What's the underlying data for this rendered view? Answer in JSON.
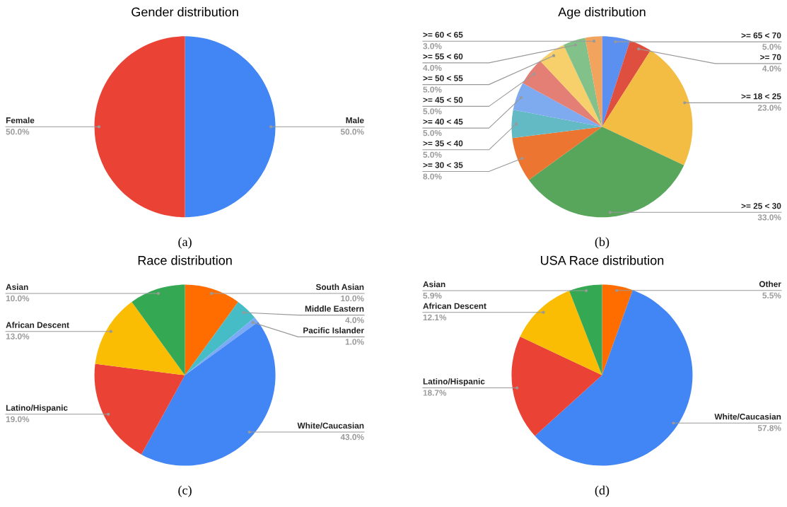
{
  "chart_data": [
    {
      "type": "pie",
      "title": "Gender distribution",
      "categories": [
        "Male",
        "Female"
      ],
      "values": [
        50.0,
        50.0
      ],
      "value_labels": [
        "50.0%",
        "50.0%"
      ],
      "colors": [
        "#4285f4",
        "#ea4335"
      ],
      "annotations": [
        "(a)"
      ]
    },
    {
      "type": "pie",
      "title": "Age distribution",
      "categories": [
        ">= 65 < 70",
        ">= 70",
        ">= 18 < 25",
        ">= 25 < 30",
        ">= 30 < 35",
        ">= 35 < 40",
        ">= 40 < 45",
        ">= 45 < 50",
        ">= 50 < 55",
        ">= 55 < 60",
        ">= 60 < 65"
      ],
      "values": [
        5.0,
        4.0,
        23.0,
        33.0,
        8.0,
        5.0,
        5.0,
        5.0,
        5.0,
        4.0,
        3.0
      ],
      "value_labels": [
        "5.0%",
        "4.0%",
        "23.0%",
        "33.0%",
        "8.0%",
        "5.0%",
        "5.0%",
        "5.0%",
        "5.0%",
        "4.0%",
        "3.0%"
      ],
      "colors": [
        "#5b8ff0",
        "#df4f3f",
        "#f2bd42",
        "#58a55c",
        "#ed7532",
        "#63b9c4",
        "#7eaaf0",
        "#e47f75",
        "#f7d06b",
        "#82c28a",
        "#f2a35e"
      ],
      "annotations": [
        "(b)"
      ]
    },
    {
      "type": "pie",
      "title": "Race distribution",
      "categories": [
        "South Asian",
        "Middle Eastern",
        "Pacific Islander",
        "White/Caucasian",
        "Latino/Hispanic",
        "African Descent",
        "Asian"
      ],
      "values": [
        10.0,
        4.0,
        1.0,
        43.0,
        19.0,
        13.0,
        10.0
      ],
      "value_labels": [
        "10.0%",
        "4.0%",
        "1.0%",
        "43.0%",
        "19.0%",
        "13.0%",
        "10.0%"
      ],
      "colors": [
        "#ff6d01",
        "#46bdc6",
        "#7baaf7",
        "#4285f4",
        "#ea4335",
        "#fbbc04",
        "#34a853"
      ],
      "annotations": [
        "(c)"
      ]
    },
    {
      "type": "pie",
      "title": "USA Race distribution",
      "categories": [
        "Other",
        "White/Caucasian",
        "Latino/Hispanic",
        "African Descent",
        "Asian"
      ],
      "values": [
        5.5,
        57.8,
        18.7,
        12.1,
        5.9
      ],
      "value_labels": [
        "5.5%",
        "57.8%",
        "18.7%",
        "12.1%",
        "5.9%"
      ],
      "colors": [
        "#ff6d01",
        "#4285f4",
        "#ea4335",
        "#fbbc04",
        "#34a853"
      ],
      "annotations": [
        "(d)"
      ]
    }
  ]
}
